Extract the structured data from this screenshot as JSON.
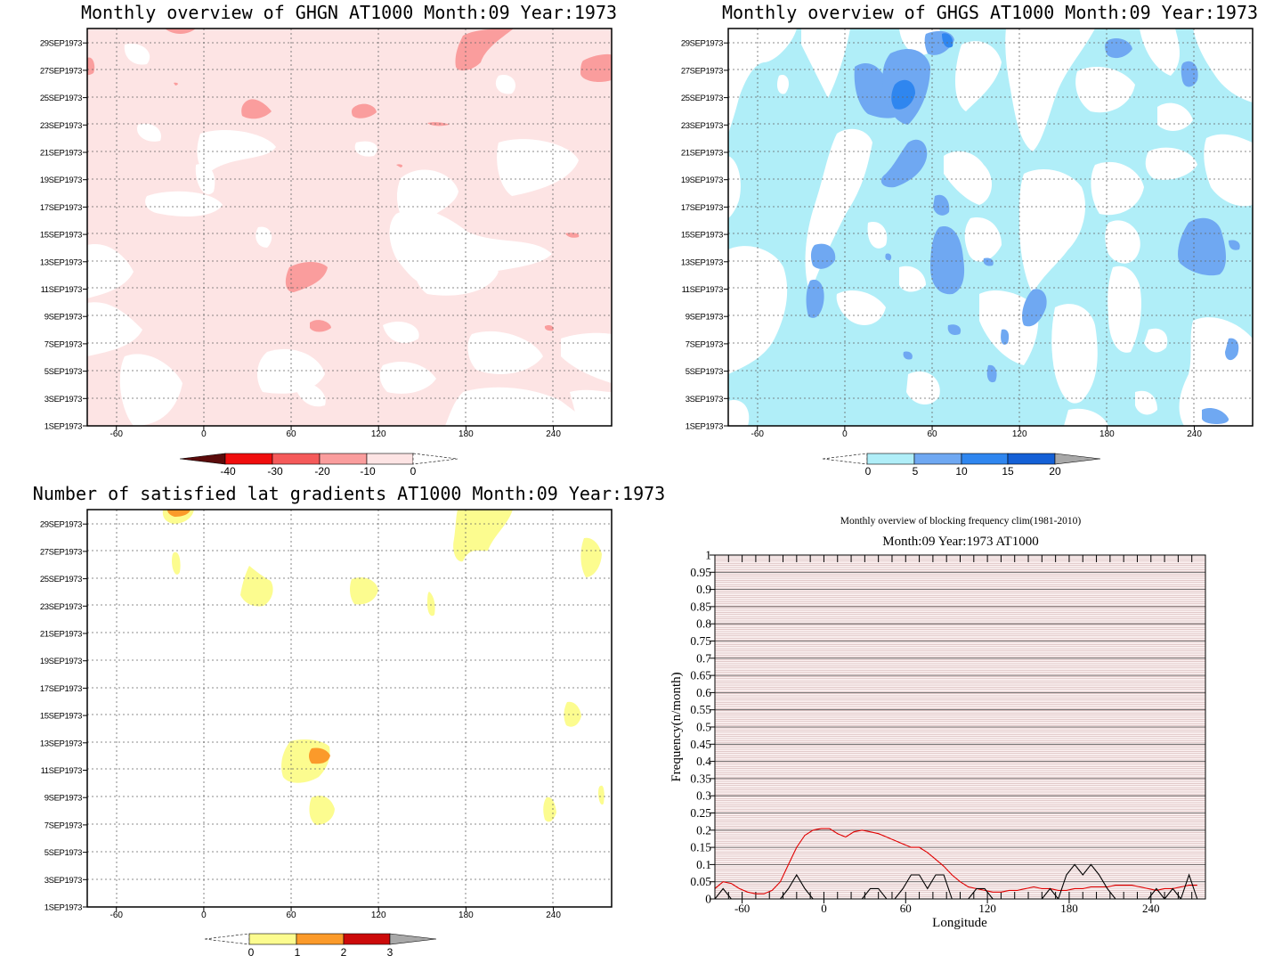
{
  "panels": {
    "ghgn": {
      "title": "Monthly overview of GHGN AT1000 Month:09 Year:1973",
      "colorbar_ticks": [
        "-40",
        "-30",
        "-20",
        "-10",
        "0"
      ],
      "colors": [
        "#ffffff",
        "#fde4e4",
        "#fa9d9d",
        "#f55a5a",
        "#f00d0d",
        "#5b0b0b"
      ]
    },
    "ghgs": {
      "title": "Monthly overview of GHGS AT1000 Month:09 Year:1973",
      "colorbar_ticks": [
        "0",
        "5",
        "10",
        "15",
        "20"
      ],
      "colors": [
        "#ffffff",
        "#b0eef8",
        "#6fa8f2",
        "#2f86ef",
        "#1460d6",
        "#a8a8a8"
      ]
    },
    "gradients": {
      "title": "Number of satisfied lat gradients AT1000 Month:09 Year:1973",
      "colorbar_ticks": [
        "0",
        "1",
        "2",
        "3"
      ],
      "colors": [
        "#ffffff",
        "#fcfc8f",
        "#fb9a2a",
        "#cc0a0a",
        "#a8a8a8"
      ]
    }
  },
  "y_ticks": [
    "1SEP1973",
    "3SEP1973",
    "5SEP1973",
    "7SEP1973",
    "9SEP1973",
    "11SEP1973",
    "13SEP1973",
    "15SEP1973",
    "17SEP1973",
    "19SEP1973",
    "21SEP1973",
    "23SEP1973",
    "25SEP1973",
    "27SEP1973",
    "29SEP1973"
  ],
  "x_ticks": [
    "-60",
    "0",
    "60",
    "120",
    "180",
    "240"
  ],
  "chart_data": [
    {
      "type": "heatmap",
      "title": "Monthly overview of GHGN AT1000 Month:09 Year:1973",
      "x_range": [
        -80,
        280
      ],
      "y_range": [
        "1SEP1973",
        "30SEP1973"
      ],
      "levels": [
        -40,
        -30,
        -20,
        -10,
        0
      ]
    },
    {
      "type": "heatmap",
      "title": "Monthly overview of GHGS AT1000 Month:09 Year:1973",
      "x_range": [
        -80,
        280
      ],
      "y_range": [
        "1SEP1973",
        "30SEP1973"
      ],
      "levels": [
        0,
        5,
        10,
        15,
        20
      ]
    },
    {
      "type": "heatmap",
      "title": "Number of satisfied lat gradients AT1000 Month:09 Year:1973",
      "x_range": [
        -80,
        280
      ],
      "y_range": [
        "1SEP1973",
        "30SEP1973"
      ],
      "levels": [
        0,
        1,
        2,
        3
      ]
    },
    {
      "type": "line",
      "title": "Monthly overview of blocking frequency clim(1981-2010)",
      "subtitle": "Month:09 Year:1973  AT1000",
      "xlabel": "Longitude",
      "ylabel": "Frequency(n/month)",
      "xlim": [
        -80,
        280
      ],
      "ylim": [
        0,
        1
      ],
      "x_ticks": [
        "-60",
        "0",
        "60",
        "120",
        "180",
        "240"
      ],
      "y_ticks": [
        "0",
        "0.05",
        "0.1",
        "0.15",
        "0.2",
        "0.25",
        "0.3",
        "0.35",
        "0.4",
        "0.45",
        "0.5",
        "0.55",
        "0.6",
        "0.65",
        "0.7",
        "0.75",
        "0.8",
        "0.85",
        "0.9",
        "0.95",
        "1"
      ],
      "series": [
        {
          "color": "#e00000",
          "x": [
            -80,
            -74,
            -68,
            -62,
            -56,
            -50,
            -44,
            -38,
            -32,
            -26,
            -20,
            -14,
            -8,
            -2,
            4,
            10,
            16,
            22,
            28,
            34,
            40,
            46,
            52,
            58,
            64,
            70,
            76,
            82,
            88,
            94,
            100,
            106,
            112,
            118,
            124,
            130,
            136,
            142,
            148,
            154,
            160,
            166,
            172,
            178,
            184,
            190,
            196,
            202,
            208,
            214,
            220,
            226,
            232,
            238,
            244,
            250,
            256,
            262,
            268,
            274
          ],
          "y": [
            0.03,
            0.05,
            0.045,
            0.03,
            0.02,
            0.015,
            0.015,
            0.025,
            0.05,
            0.1,
            0.15,
            0.185,
            0.2,
            0.205,
            0.205,
            0.19,
            0.18,
            0.195,
            0.2,
            0.195,
            0.19,
            0.18,
            0.17,
            0.16,
            0.15,
            0.15,
            0.135,
            0.115,
            0.095,
            0.07,
            0.05,
            0.035,
            0.03,
            0.025,
            0.02,
            0.02,
            0.025,
            0.025,
            0.03,
            0.035,
            0.03,
            0.03,
            0.025,
            0.025,
            0.03,
            0.03,
            0.035,
            0.035,
            0.035,
            0.04,
            0.04,
            0.04,
            0.035,
            0.03,
            0.025,
            0.03,
            0.03,
            0.035,
            0.04,
            0.04
          ]
        },
        {
          "color": "#000000",
          "x": [
            -80,
            -74,
            -68,
            -62,
            -56,
            -50,
            -44,
            -38,
            -32,
            -26,
            -20,
            -14,
            -8,
            -2,
            4,
            10,
            16,
            22,
            28,
            34,
            40,
            46,
            52,
            58,
            64,
            70,
            76,
            82,
            88,
            94,
            100,
            106,
            112,
            118,
            124,
            130,
            136,
            142,
            148,
            154,
            160,
            166,
            172,
            178,
            184,
            190,
            196,
            202,
            208,
            214,
            220,
            226,
            232,
            238,
            244,
            250,
            256,
            262,
            268,
            274
          ],
          "y": [
            0,
            0.03,
            0,
            0,
            0,
            0,
            0,
            0,
            0,
            0.03,
            0.07,
            0.03,
            0,
            0,
            0,
            0,
            0,
            0,
            0,
            0.03,
            0.03,
            0,
            0,
            0.03,
            0.07,
            0.07,
            0.03,
            0.07,
            0.07,
            0,
            0,
            0,
            0.03,
            0.03,
            0,
            0,
            0,
            0,
            0,
            0,
            0,
            0.03,
            0,
            0.07,
            0.1,
            0.07,
            0.1,
            0.07,
            0.03,
            0,
            0,
            0,
            0,
            0,
            0.03,
            0,
            0.03,
            0,
            0.07,
            0
          ]
        }
      ]
    }
  ]
}
